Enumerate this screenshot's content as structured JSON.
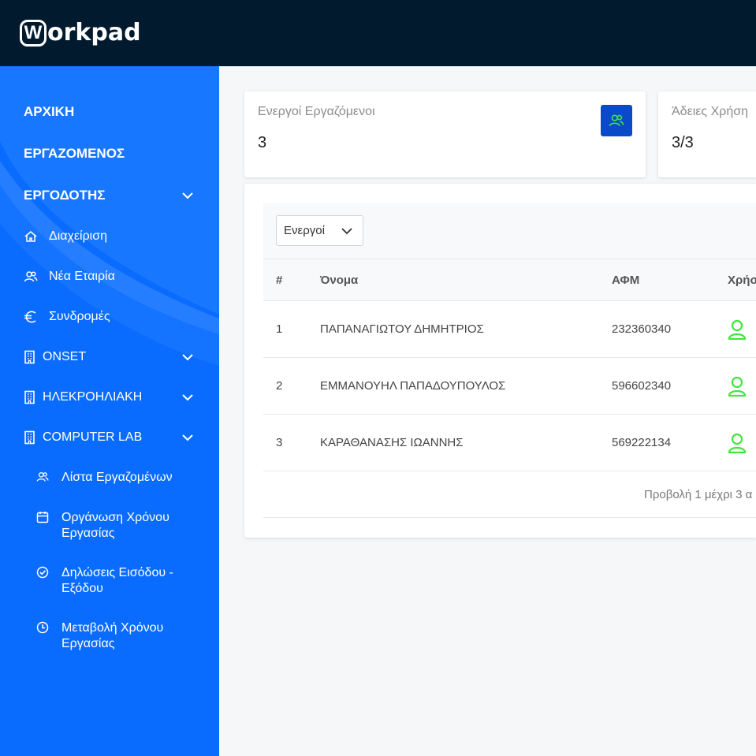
{
  "brand": {
    "logo_letter": "W",
    "logo_text": "orkpad"
  },
  "sidebar": {
    "main": [
      {
        "label": "ΑΡΧΙΚΗ"
      },
      {
        "label": "ΕΡΓΑΖΟΜΕΝΟΣ"
      },
      {
        "label": "ΕΡΓΟΔΟΤΗΣ",
        "expanded": true
      }
    ],
    "employer_items": [
      {
        "label": "Διαχείριση",
        "icon": "home-icon"
      },
      {
        "label": "Νέα Εταιρία",
        "icon": "users-icon"
      },
      {
        "label": "Συνδρομές",
        "icon": "euro-icon"
      }
    ],
    "companies": [
      {
        "label": "ONSET",
        "icon": "building-icon"
      },
      {
        "label": "ΗΛΕΚΡΟΗΛΙΑΚΗ",
        "icon": "building-icon"
      },
      {
        "label": "COMPUTER LAB",
        "icon": "building-icon",
        "expanded": true
      }
    ],
    "company_items": [
      {
        "label": "Λίστα Εργαζομένων",
        "icon": "users-icon"
      },
      {
        "label": "Οργάνωση Χρόνου Εργασίας",
        "icon": "calendar-icon"
      },
      {
        "label": "Δηλώσεις Εισόδου - Εξόδου",
        "icon": "check-circle-icon"
      },
      {
        "label": "Μεταβολή Χρόνου Εργασίας",
        "icon": "clock-icon"
      }
    ]
  },
  "stats": [
    {
      "title": "Ενεργοί Εργαζόμενοι",
      "value": "3",
      "icon": "users-icon"
    },
    {
      "title": "Άδειες Χρήση",
      "value": "3/3"
    }
  ],
  "table": {
    "filter": {
      "selected": "Ενεργοί"
    },
    "columns": [
      "#",
      "Όνομα",
      "ΑΦΜ",
      "Χρήσ"
    ],
    "rows": [
      {
        "num": "1",
        "name": "ΠΑΠΑΝΑΓΙΩΤΟΥ ΔΗΜΗΤΡΙΟΣ",
        "afm": "232360340",
        "user_icon": "user-icon"
      },
      {
        "num": "2",
        "name": "ΕΜΜΑΝΟΥΗΛ ΠΑΠΑΔΟΥΠΟΥΛΟΣ",
        "afm": "596602340",
        "user_icon": "user-icon"
      },
      {
        "num": "3",
        "name": "ΚΑΡΑΘΑΝΑΣΗΣ ΙΩΑΝΝΗΣ",
        "afm": "569222134",
        "user_icon": "user-icon"
      }
    ],
    "pager_text": "Προβολή 1 μέχρι 3 α"
  },
  "colors": {
    "topbar": "#021a2e",
    "sidebar": "#0a6cff",
    "stat_icon_bg": "#0a49c8",
    "user_icon": "#3ee63e"
  }
}
